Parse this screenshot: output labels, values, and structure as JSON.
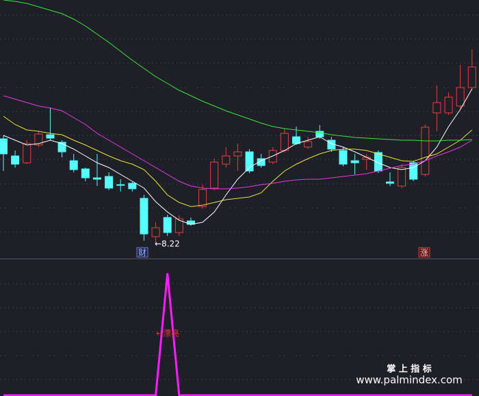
{
  "chart_data": [
    {
      "type": "candlestick",
      "candles": {
        "open": [
          9.74,
          9.49,
          9.39,
          9.65,
          9.8,
          9.69,
          9.42,
          9.3,
          9.17,
          9.19,
          9.07,
          9.09,
          8.87,
          8.31,
          8.59,
          8.37,
          8.54,
          8.75,
          9.02,
          9.37,
          9.49,
          9.55,
          9.45,
          9.4,
          9.57,
          9.77,
          9.62,
          9.85,
          9.72,
          9.57,
          9.42,
          9.44,
          9.54,
          9.11,
          9.05,
          9.39,
          9.22,
          10.12,
          10.12,
          10.22,
          10.49
        ],
        "high": [
          9.79,
          9.57,
          9.72,
          9.85,
          10.2,
          9.72,
          9.52,
          9.32,
          9.52,
          9.25,
          9.15,
          9.11,
          8.92,
          8.52,
          8.63,
          8.62,
          8.59,
          9.07,
          9.45,
          9.62,
          9.67,
          9.59,
          9.52,
          9.62,
          9.89,
          9.92,
          9.77,
          9.94,
          9.77,
          9.62,
          9.52,
          9.52,
          9.57,
          9.25,
          9.37,
          9.42,
          9.95,
          10.52,
          10.42,
          10.82,
          11.05
        ],
        "low": [
          9.27,
          9.32,
          9.37,
          9.62,
          9.72,
          9.47,
          9.25,
          9.12,
          9.05,
          8.99,
          8.97,
          8.97,
          8.25,
          8.22,
          8.32,
          8.32,
          8.47,
          8.72,
          8.99,
          9.32,
          9.27,
          9.24,
          9.32,
          9.37,
          9.54,
          9.65,
          9.59,
          9.74,
          9.55,
          9.34,
          9.22,
          9.29,
          9.24,
          9.05,
          9.02,
          9.12,
          9.19,
          9.85,
          10.09,
          10.19,
          10.45
        ],
        "close": [
          9.52,
          9.37,
          9.67,
          9.81,
          9.75,
          9.55,
          9.29,
          9.17,
          9.15,
          9.02,
          9.06,
          9.01,
          8.35,
          8.44,
          8.37,
          8.57,
          8.49,
          9.0,
          9.4,
          9.49,
          9.55,
          9.27,
          9.35,
          9.57,
          9.82,
          9.67,
          9.7,
          9.77,
          9.59,
          9.37,
          9.39,
          9.47,
          9.27,
          9.09,
          9.32,
          9.15,
          9.91,
          10.27,
          10.35,
          10.49,
          10.79
        ]
      },
      "up_color": "#e8403a",
      "down_color": "#54fcfc",
      "series": [
        {
          "color": "#ffffff",
          "values": [
            9.79,
            9.72,
            9.65,
            9.67,
            9.72,
            9.67,
            9.59,
            9.49,
            9.39,
            9.32,
            9.22,
            9.12,
            9.02,
            8.82,
            8.67,
            8.55,
            8.49,
            8.52,
            8.67,
            8.92,
            9.15,
            9.32,
            9.42,
            9.49,
            9.57,
            9.67,
            9.72,
            9.77,
            9.67,
            9.62,
            9.55,
            9.47,
            9.39,
            9.32,
            9.29,
            9.32,
            9.42,
            9.62,
            9.92,
            10.17,
            10.47
          ]
        },
        {
          "color": "#e8e83a",
          "values": [
            10.07,
            9.95,
            9.87,
            9.85,
            9.82,
            9.8,
            9.72,
            9.65,
            9.57,
            9.49,
            9.42,
            9.37,
            9.29,
            9.12,
            8.92,
            8.81,
            8.75,
            8.77,
            8.81,
            8.85,
            8.87,
            8.89,
            8.95,
            9.12,
            9.27,
            9.37,
            9.45,
            9.52,
            9.57,
            9.59,
            9.59,
            9.57,
            9.52,
            9.47,
            9.42,
            9.41,
            9.47,
            9.52,
            9.62,
            9.72,
            9.87
          ]
        },
        {
          "color": "#e83ae8",
          "values": [
            10.37,
            10.32,
            10.27,
            10.22,
            10.19,
            10.15,
            10.05,
            9.95,
            9.82,
            9.72,
            9.62,
            9.52,
            9.42,
            9.32,
            9.22,
            9.12,
            9.05,
            9.02,
            9.01,
            9.01,
            9.02,
            9.04,
            9.07,
            9.09,
            9.12,
            9.14,
            9.15,
            9.15,
            9.17,
            9.19,
            9.21,
            9.23,
            9.27,
            9.31,
            9.35,
            9.37,
            9.42,
            9.49,
            9.55,
            9.62,
            9.72
          ]
        },
        {
          "color": "#3ae83a",
          "values": [
            11.77,
            11.75,
            11.72,
            11.67,
            11.62,
            11.57,
            11.49,
            11.39,
            11.27,
            11.15,
            11.02,
            10.89,
            10.77,
            10.65,
            10.55,
            10.45,
            10.37,
            10.29,
            10.22,
            10.15,
            10.09,
            10.03,
            9.97,
            9.92,
            9.89,
            9.87,
            9.85,
            9.83,
            9.8,
            9.78,
            9.76,
            9.75,
            9.74,
            9.73,
            9.72,
            9.72,
            9.71,
            9.71,
            9.72,
            9.72,
            9.73
          ]
        }
      ],
      "ylim": [
        7.99,
        11.77
      ],
      "low_label": "←8.22",
      "marker_1": "财",
      "marker_2": "涨"
    },
    {
      "type": "line",
      "series": [
        {
          "color": "#ff1cff",
          "values": [
            0,
            0,
            0,
            0,
            0,
            0,
            0,
            0,
            0,
            0,
            0,
            0,
            0,
            0,
            1,
            0,
            0,
            0,
            0,
            0,
            0,
            0,
            0,
            0,
            0,
            0,
            0,
            0,
            0,
            0,
            0,
            0,
            0,
            0,
            0,
            0,
            0,
            0,
            0,
            0,
            0
          ]
        }
      ],
      "ylim": [
        0,
        1.11
      ],
      "annotation": "←漂亮"
    }
  ],
  "watermark": {
    "title": "掌 上 指 标",
    "url": "www.palmindex.com"
  }
}
